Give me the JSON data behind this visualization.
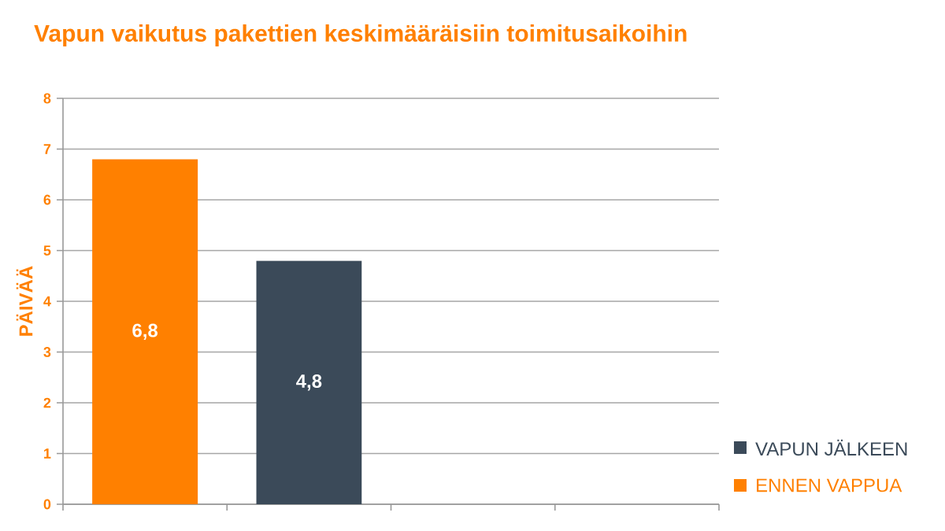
{
  "chart_data": {
    "type": "bar",
    "title": "Vapun vaikutus pakettien keskimääräisiin toimitusaikoihin",
    "ylabel": "PÄIVÄÄ",
    "categories": [
      null,
      null,
      null,
      null
    ],
    "series": [
      {
        "name": "ENNEN VAPPUA",
        "color": "#ff8000",
        "values": [
          6.8,
          null,
          null,
          null
        ],
        "value_labels": [
          "6,8",
          null,
          null,
          null
        ]
      },
      {
        "name": "VAPUN JÄLKEEN",
        "color": "#3b4a59",
        "values": [
          null,
          4.8,
          null,
          null
        ],
        "value_labels": [
          null,
          "4,8",
          null,
          null
        ]
      }
    ],
    "ylim": [
      0,
      8
    ],
    "yticks": [
      0,
      1,
      2,
      3,
      4,
      5,
      6,
      7,
      8
    ],
    "grid": "y",
    "legend": "bottom right"
  }
}
